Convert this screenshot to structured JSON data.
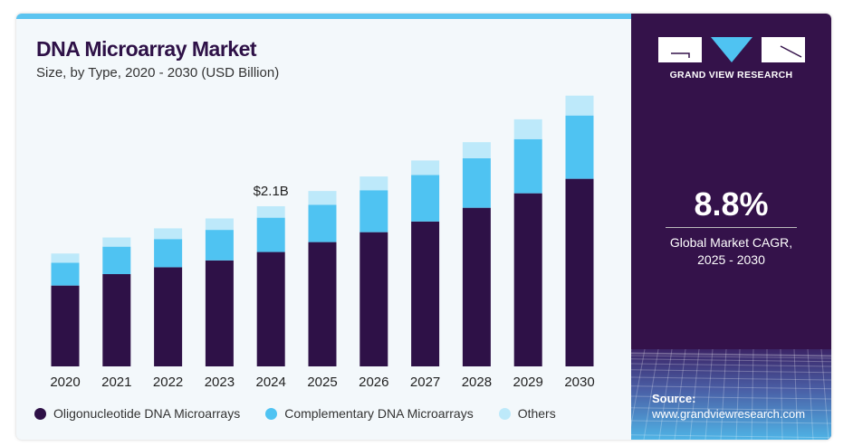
{
  "header": {
    "title": "DNA Microarray Market",
    "subtitle": "Size, by Type, 2020 - 2030 (USD Billion)"
  },
  "brand": {
    "name": "GRAND VIEW RESEARCH",
    "cagr_value": "8.8%",
    "cagr_label_1": "Global Market CAGR,",
    "cagr_label_2": "2025 - 2030",
    "source_label": "Source:",
    "source_url": "www.grandviewresearch.com"
  },
  "colors": {
    "dark": "#2e1147",
    "blue": "#4fc3f2",
    "light": "#bde9fa",
    "panel": "#34124a"
  },
  "chart_data": {
    "type": "bar",
    "stacked": true,
    "title": "DNA Microarray Market",
    "subtitle": "Size, by Type, 2020 - 2030 (USD Billion)",
    "categories": [
      "2020",
      "2021",
      "2022",
      "2023",
      "2024",
      "2025",
      "2026",
      "2027",
      "2028",
      "2029",
      "2030"
    ],
    "series": [
      {
        "name": "Oligonucleotide DNA Microarrays",
        "values": [
          1.06,
          1.21,
          1.3,
          1.39,
          1.5,
          1.63,
          1.76,
          1.9,
          2.08,
          2.27,
          2.46
        ]
      },
      {
        "name": "Complementary DNA Microarrays",
        "values": [
          0.3,
          0.36,
          0.37,
          0.4,
          0.45,
          0.49,
          0.55,
          0.61,
          0.65,
          0.71,
          0.83
        ]
      },
      {
        "name": "Others",
        "values": [
          0.12,
          0.12,
          0.14,
          0.15,
          0.15,
          0.18,
          0.18,
          0.19,
          0.21,
          0.26,
          0.26
        ]
      }
    ],
    "annotations": [
      {
        "category": "2024",
        "text": "$2.1B"
      }
    ],
    "ylim": [
      0,
      3.6
    ],
    "grid": false,
    "legend": "bottom"
  }
}
